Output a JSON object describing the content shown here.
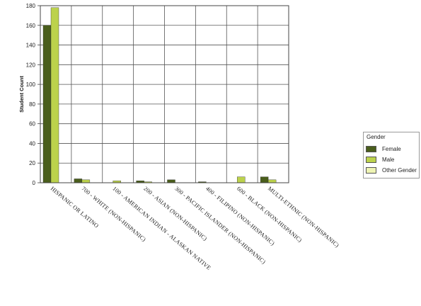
{
  "chart_data": {
    "type": "bar",
    "title": "",
    "xlabel": "",
    "ylabel": "Student Count",
    "ylim": [
      0,
      180
    ],
    "yticks": [
      0,
      20,
      40,
      60,
      80,
      100,
      120,
      140,
      160,
      180
    ],
    "grid": true,
    "legend_position": "right",
    "categories": [
      "HISPANIC OR LATINO",
      "700 - WHITE (NON-HISPANIC)",
      "100 - AMERICAN INDIAN - ALASKAN NATIVE",
      "200 - ASIAN (NON-HISPANIC)",
      "300 - PACIFIC ISLANDER (NON-HISPANIC)",
      "400 - FILIPINO (NON-HISPANIC)",
      "600 - BLACK (NON-HISPANIC)",
      "MULTI-ETHNIC (NON-HISPANIC)"
    ],
    "series": [
      {
        "name": "Female",
        "color": "#4a5e1c",
        "values": [
          160,
          4,
          0,
          2,
          3,
          1,
          0,
          6
        ]
      },
      {
        "name": "Male",
        "color": "#bcd24c",
        "values": [
          178,
          3,
          2,
          1,
          0,
          0,
          6,
          3
        ]
      },
      {
        "name": "Other Gender",
        "color": "#eef4b4",
        "values": [
          0,
          0,
          0,
          0,
          0,
          0,
          0,
          0
        ]
      }
    ]
  },
  "legend": {
    "title": "Gender",
    "items": [
      "Female",
      "Male",
      "Other Gender"
    ]
  }
}
